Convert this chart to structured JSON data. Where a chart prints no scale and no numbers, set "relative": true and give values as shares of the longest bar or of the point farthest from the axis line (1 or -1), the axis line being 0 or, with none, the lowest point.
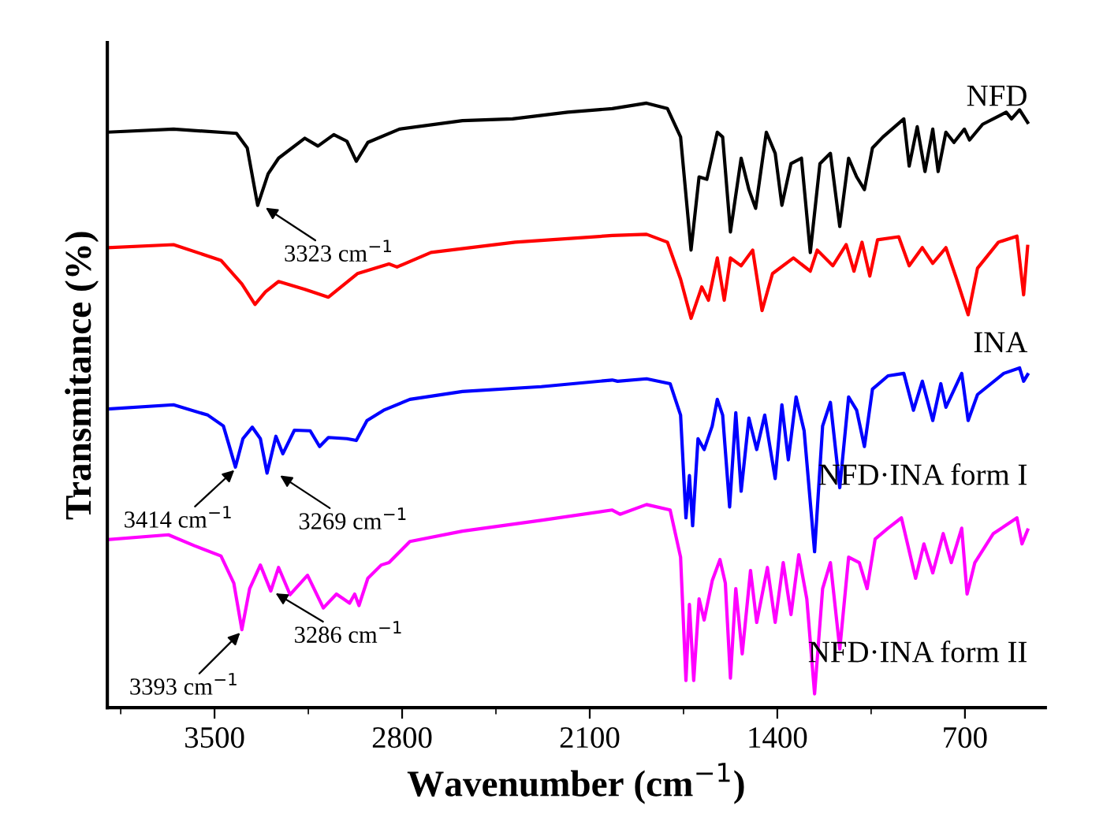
{
  "chart_data": {
    "type": "line",
    "relative": true,
    "xlabel": "Wavenumber (cm$^{−1}$)",
    "ylabel": "Transmitance (%)",
    "xlim": [
      3900,
      400
    ],
    "xticks": [
      3500,
      2800,
      2100,
      1400,
      700
    ],
    "tick_labels": "x",
    "grid": false,
    "legend": false,
    "marker": "none",
    "line_style": "solid",
    "series": [
      {
        "name": "NFD",
        "color": "#000000",
        "x": [
          3898,
          3653,
          3418,
          3378,
          3339,
          3300,
          3261,
          3163,
          3114,
          3055,
          3006,
          2971,
          2928,
          2810,
          2575,
          2388,
          2182,
          2016,
          1888,
          1810,
          1761,
          1722,
          1692,
          1663,
          1624,
          1604,
          1575,
          1535,
          1506,
          1481,
          1441,
          1408,
          1383,
          1349,
          1310,
          1277,
          1241,
          1202,
          1167,
          1134,
          1104,
          1075,
          1045,
          1006,
          928,
          908,
          878,
          849,
          820,
          800,
          771,
          741,
          702,
          683,
          634,
          546,
          526,
          496,
          466
        ],
        "values": [
          0.952,
          0.957,
          0.95,
          0.926,
          0.831,
          0.883,
          0.909,
          0.942,
          0.929,
          0.948,
          0.937,
          0.904,
          0.935,
          0.957,
          0.971,
          0.974,
          0.985,
          0.991,
          1.0,
          0.991,
          0.944,
          0.757,
          0.878,
          0.874,
          0.952,
          0.944,
          0.787,
          0.909,
          0.857,
          0.826,
          0.952,
          0.917,
          0.831,
          0.9,
          0.909,
          0.753,
          0.9,
          0.917,
          0.796,
          0.909,
          0.878,
          0.857,
          0.926,
          0.944,
          0.974,
          0.896,
          0.961,
          0.887,
          0.957,
          0.887,
          0.952,
          0.935,
          0.957,
          0.939,
          0.965,
          0.985,
          0.974,
          0.989,
          0.968
        ]
      },
      {
        "name": "INA",
        "color": "#ff0000",
        "x": [
          3898,
          3653,
          3476,
          3398,
          3349,
          3310,
          3261,
          3163,
          3075,
          2967,
          2849,
          2819,
          2692,
          2378,
          2016,
          1888,
          1810,
          1761,
          1722,
          1682,
          1657,
          1624,
          1598,
          1575,
          1535,
          1492,
          1457,
          1418,
          1340,
          1277,
          1251,
          1193,
          1143,
          1114,
          1084,
          1055,
          1026,
          947,
          908,
          859,
          820,
          771,
          731,
          688,
          653,
          575,
          506,
          481,
          466
        ],
        "values": [
          0.761,
          0.766,
          0.74,
          0.701,
          0.667,
          0.688,
          0.705,
          0.692,
          0.679,
          0.718,
          0.734,
          0.729,
          0.753,
          0.77,
          0.781,
          0.783,
          0.77,
          0.709,
          0.644,
          0.696,
          0.674,
          0.744,
          0.674,
          0.744,
          0.731,
          0.757,
          0.657,
          0.718,
          0.744,
          0.722,
          0.757,
          0.731,
          0.766,
          0.722,
          0.77,
          0.714,
          0.774,
          0.779,
          0.731,
          0.761,
          0.735,
          0.761,
          0.709,
          0.65,
          0.727,
          0.77,
          0.78,
          0.683,
          0.763
        ]
      },
      {
        "name": "NFD·INA form I",
        "color": "#0000ff",
        "x": [
          3898,
          3653,
          3525,
          3467,
          3447,
          3422,
          3394,
          3359,
          3329,
          3304,
          3271,
          3245,
          3202,
          3143,
          3108,
          3075,
          3006,
          2971,
          2931,
          2869,
          2771,
          2575,
          2281,
          2016,
          1996,
          1888,
          1800,
          1761,
          1741,
          1728,
          1716,
          1696,
          1673,
          1643,
          1624,
          1604,
          1578,
          1555,
          1535,
          1506,
          1477,
          1447,
          1408,
          1383,
          1359,
          1330,
          1300,
          1261,
          1231,
          1202,
          1167,
          1134,
          1104,
          1075,
          1045,
          987,
          928,
          892,
          859,
          820,
          790,
          771,
          712,
          688,
          653,
          555,
          496,
          481,
          466
        ],
        "values": [
          0.494,
          0.501,
          0.484,
          0.466,
          0.436,
          0.398,
          0.445,
          0.464,
          0.445,
          0.388,
          0.449,
          0.42,
          0.459,
          0.458,
          0.432,
          0.447,
          0.445,
          0.442,
          0.475,
          0.492,
          0.51,
          0.523,
          0.531,
          0.542,
          0.54,
          0.544,
          0.536,
          0.484,
          0.314,
          0.384,
          0.301,
          0.445,
          0.427,
          0.466,
          0.51,
          0.484,
          0.332,
          0.488,
          0.358,
          0.479,
          0.427,
          0.484,
          0.379,
          0.501,
          0.41,
          0.514,
          0.458,
          0.258,
          0.466,
          0.505,
          0.364,
          0.514,
          0.492,
          0.432,
          0.527,
          0.549,
          0.553,
          0.492,
          0.54,
          0.475,
          0.536,
          0.497,
          0.553,
          0.475,
          0.518,
          0.553,
          0.562,
          0.54,
          0.551
        ]
      },
      {
        "name": "NFD·INA form II",
        "color": "#ff00ff",
        "x": [
          3898,
          3672,
          3575,
          3476,
          3428,
          3398,
          3369,
          3329,
          3290,
          3261,
          3218,
          3153,
          3094,
          3045,
          2996,
          2977,
          2961,
          2928,
          2878,
          2849,
          2771,
          2575,
          2281,
          2016,
          1987,
          1888,
          1800,
          1761,
          1741,
          1728,
          1712,
          1692,
          1673,
          1643,
          1614,
          1594,
          1575,
          1555,
          1531,
          1500,
          1477,
          1437,
          1408,
          1378,
          1349,
          1320,
          1290,
          1261,
          1231,
          1202,
          1167,
          1134,
          1094,
          1065,
          1035,
          987,
          937,
          884,
          853,
          820,
          781,
          751,
          712,
          692,
          663,
          594,
          506,
          487,
          466
        ],
        "values": [
          0.278,
          0.286,
          0.268,
          0.251,
          0.206,
          0.129,
          0.197,
          0.236,
          0.193,
          0.232,
          0.187,
          0.219,
          0.165,
          0.188,
          0.173,
          0.188,
          0.169,
          0.214,
          0.236,
          0.24,
          0.275,
          0.292,
          0.31,
          0.327,
          0.32,
          0.336,
          0.327,
          0.249,
          0.045,
          0.171,
          0.045,
          0.18,
          0.145,
          0.21,
          0.245,
          0.206,
          0.049,
          0.197,
          0.089,
          0.227,
          0.141,
          0.232,
          0.141,
          0.24,
          0.154,
          0.253,
          0.18,
          0.023,
          0.197,
          0.24,
          0.097,
          0.249,
          0.24,
          0.197,
          0.279,
          0.297,
          0.314,
          0.214,
          0.271,
          0.223,
          0.288,
          0.24,
          0.297,
          0.188,
          0.24,
          0.288,
          0.314,
          0.271,
          0.294
        ]
      }
    ],
    "annotations": [
      {
        "text": "3323 cm$^{−1}$",
        "x": 3323,
        "y": 0.831
      },
      {
        "text": "3414 cm$^{−1}$",
        "x": 3414,
        "y": 0.398
      },
      {
        "text": "3269 cm$^{−1}$",
        "x": 3269,
        "y": 0.388
      },
      {
        "text": "3393 cm$^{−1}$",
        "x": 3393,
        "y": 0.129
      },
      {
        "text": "3286 cm$^{−1}$",
        "x": 3286,
        "y": 0.193
      }
    ]
  }
}
